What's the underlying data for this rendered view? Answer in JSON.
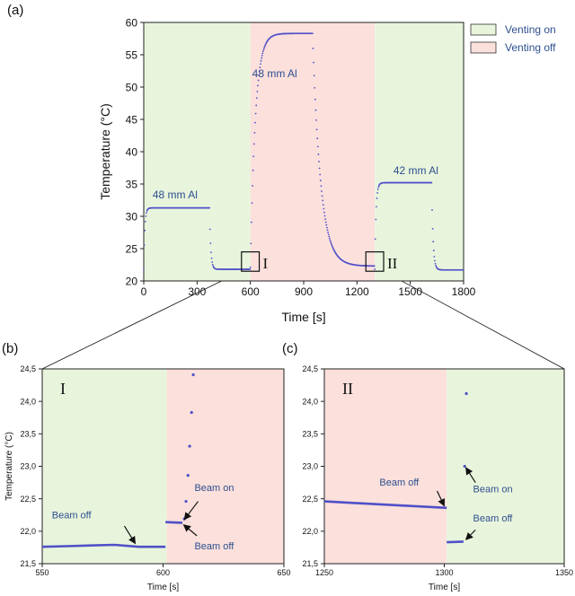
{
  "colors": {
    "venting_on_bg": "#e8f5dc",
    "venting_off_bg": "#fbe0dc",
    "data": "#5050c8",
    "annotation": "#2e4f8f"
  },
  "chart_data": [
    {
      "panel": "(a)",
      "type": "scatter",
      "xlabel": "Time [s]",
      "ylabel": "Temperature (°C)",
      "xlim": [
        0,
        1800
      ],
      "ylim": [
        20,
        60
      ],
      "xticks": [
        "0",
        "300",
        "600",
        "900",
        "1200",
        "1500",
        "1800"
      ],
      "yticks": [
        "20",
        "25",
        "30",
        "35",
        "40",
        "45",
        "50",
        "55",
        "60"
      ],
      "grid": false,
      "legend_position": "top-right",
      "regions": [
        {
          "name": "Venting on",
          "start": 0,
          "end": 600
        },
        {
          "name": "Venting off",
          "start": 600,
          "end": 1300
        },
        {
          "name": "Venting on",
          "start": 1300,
          "end": 1800
        }
      ],
      "legend": [
        {
          "label": "Venting on",
          "kind": "on"
        },
        {
          "label": "Venting off",
          "kind": "off"
        }
      ],
      "annotations": [
        {
          "text": "48 mm Al",
          "x": 50,
          "y": 32.8
        },
        {
          "text": "48 mm Al",
          "x": 610,
          "y": 51.5
        },
        {
          "text": "42 mm Al",
          "x": 1405,
          "y": 36.5
        }
      ],
      "insets": [
        {
          "label": "I",
          "x": [
            550,
            650
          ],
          "y": [
            21.5,
            24.5
          ]
        },
        {
          "label": "II",
          "x": [
            1250,
            1350
          ],
          "y": [
            21.5,
            24.5
          ]
        }
      ],
      "series": [
        {
          "segments": [
            {
              "kind": "rise",
              "t0": 0,
              "t1": 350,
              "base": 21.8,
              "plateau": 31.3,
              "tau": 6
            },
            {
              "kind": "flat",
              "t0": 350,
              "t1": 370,
              "base": 31.3,
              "plateau": 31.3,
              "tau": 1
            },
            {
              "kind": "fall",
              "t0": 370,
              "t1": 600,
              "base": 31.3,
              "plateau": 21.8,
              "tau": 7
            },
            {
              "kind": "rise",
              "t0": 600,
              "t1": 950,
              "base": 22.1,
              "plateau": 58.3,
              "tau": 28
            },
            {
              "kind": "fall",
              "t0": 950,
              "t1": 1300,
              "base": 58.3,
              "plateau": 22.3,
              "tau": 45
            },
            {
              "kind": "rise",
              "t0": 1300,
              "t1": 1620,
              "base": 21.8,
              "plateau": 35.2,
              "tau": 7
            },
            {
              "kind": "fall",
              "t0": 1620,
              "t1": 1800,
              "base": 35.2,
              "plateau": 21.7,
              "tau": 8
            }
          ]
        }
      ]
    },
    {
      "panel": "(b)",
      "roman": "I",
      "type": "scatter",
      "xlabel": "Time [s]",
      "ylabel": "Temperature (°C)",
      "xlim": [
        550,
        650
      ],
      "ylim": [
        21.5,
        24.5
      ],
      "xticks": [
        "550",
        "600",
        "650"
      ],
      "yticks": [
        "21,5",
        "22,0",
        "22,5",
        "23,0",
        "23,5",
        "24,0",
        "24,5"
      ],
      "regions": [
        {
          "name": "Venting on",
          "start": 550,
          "end": 601.5
        },
        {
          "name": "Venting off",
          "start": 601.5,
          "end": 650
        }
      ],
      "lines": [
        {
          "x0": 550,
          "x1": 601,
          "points": [
            [
              550,
              21.76
            ],
            [
              560,
              21.77
            ],
            [
              570,
              21.78
            ],
            [
              580,
              21.79
            ],
            [
              590,
              21.76
            ],
            [
              601,
              21.76
            ]
          ]
        },
        {
          "x0": 601,
          "x1": 608,
          "points": [
            [
              601,
              22.14
            ],
            [
              608,
              22.13
            ]
          ]
        }
      ],
      "points": [
        {
          "x": 608.8,
          "y": 22.19
        },
        {
          "x": 609.5,
          "y": 22.46
        },
        {
          "x": 610.3,
          "y": 22.86
        },
        {
          "x": 611.0,
          "y": 23.31
        },
        {
          "x": 611.8,
          "y": 23.83
        },
        {
          "x": 612.5,
          "y": 24.41
        }
      ],
      "annotations": [
        {
          "text": "Beam off",
          "x": 554,
          "y": 22.2,
          "arrow": [
            [
              584,
              22.08
            ],
            [
              588.5,
              21.81
            ]
          ]
        },
        {
          "text": "Beam on",
          "x": 613,
          "y": 22.62,
          "arrow": [
            [
              614.5,
              22.46
            ],
            [
              608.8,
              22.18
            ]
          ]
        },
        {
          "text": "Beam off",
          "x": 613,
          "y": 21.72,
          "arrow": [
            [
              614,
              21.93
            ],
            [
              608.5,
              22.1
            ]
          ]
        }
      ]
    },
    {
      "panel": "(c)",
      "roman": "II",
      "type": "scatter",
      "xlabel": "Time [s]",
      "ylabel": "",
      "xlim": [
        1250,
        1350
      ],
      "ylim": [
        21.5,
        24.5
      ],
      "xticks": [
        "1250",
        "1300",
        "1350"
      ],
      "yticks": [
        "21,5",
        "22,0",
        "22,5",
        "23,0",
        "23,5",
        "24,0",
        "24,5"
      ],
      "regions": [
        {
          "name": "Venting off",
          "start": 1250,
          "end": 1301
        },
        {
          "name": "Venting on",
          "start": 1301,
          "end": 1350
        }
      ],
      "lines": [
        {
          "x0": 1250,
          "x1": 1301,
          "points": [
            [
              1250,
              22.46
            ],
            [
              1301,
              22.36
            ]
          ]
        },
        {
          "x0": 1301,
          "x1": 1308,
          "points": [
            [
              1301,
              21.83
            ],
            [
              1308,
              21.84
            ]
          ]
        }
      ],
      "points": [
        {
          "x": 1308.5,
          "y": 23.0
        },
        {
          "x": 1309.2,
          "y": 24.12
        }
      ],
      "annotations": [
        {
          "text": "Beam off",
          "x": 1273,
          "y": 22.7,
          "arrow": [
            [
              1297,
              22.62
            ],
            [
              1300,
              22.39
            ]
          ]
        },
        {
          "text": "Beam on",
          "x": 1312,
          "y": 22.6,
          "arrow": [
            [
              1313,
              22.75
            ],
            [
              1309,
              22.98
            ]
          ]
        },
        {
          "text": "Beam off",
          "x": 1312,
          "y": 22.15,
          "arrow": [
            [
              1313,
              22.02
            ],
            [
              1309,
              21.87
            ]
          ]
        }
      ]
    }
  ]
}
